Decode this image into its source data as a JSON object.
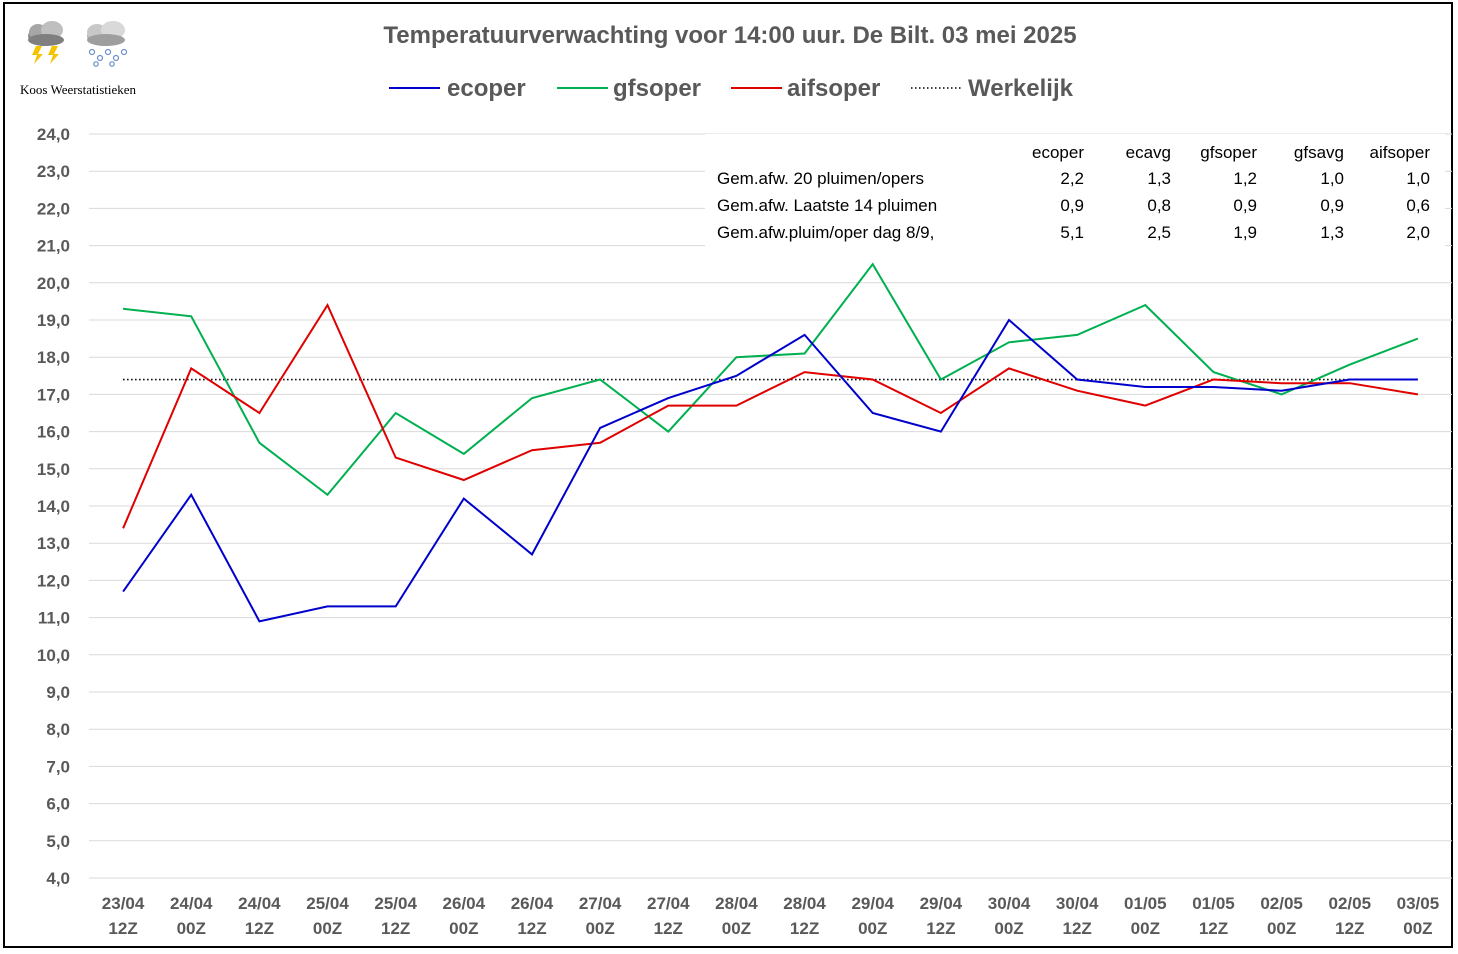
{
  "brand": {
    "name": "Koos Weerstatistieken",
    "icons": [
      "thunderstorm-cloud-icon",
      "snow-cloud-icon"
    ]
  },
  "chart_data": {
    "type": "line",
    "title": "Temperatuurverwachting voor 14:00 uur. De Bilt. 03 mei 2025",
    "legend_position": "top",
    "grid": true,
    "ylim": [
      4.0,
      24.0
    ],
    "yticks": [
      "4,0",
      "5,0",
      "6,0",
      "7,0",
      "8,0",
      "9,0",
      "10,0",
      "11,0",
      "12,0",
      "13,0",
      "14,0",
      "15,0",
      "16,0",
      "17,0",
      "18,0",
      "19,0",
      "20,0",
      "21,0",
      "22,0",
      "23,0",
      "24,0"
    ],
    "categories": [
      [
        "23/04",
        "12Z"
      ],
      [
        "24/04",
        "00Z"
      ],
      [
        "24/04",
        "12Z"
      ],
      [
        "25/04",
        "00Z"
      ],
      [
        "25/04",
        "12Z"
      ],
      [
        "26/04",
        "00Z"
      ],
      [
        "26/04",
        "12Z"
      ],
      [
        "27/04",
        "00Z"
      ],
      [
        "27/04",
        "12Z"
      ],
      [
        "28/04",
        "00Z"
      ],
      [
        "28/04",
        "12Z"
      ],
      [
        "29/04",
        "00Z"
      ],
      [
        "29/04",
        "12Z"
      ],
      [
        "30/04",
        "00Z"
      ],
      [
        "30/04",
        "12Z"
      ],
      [
        "01/05",
        "00Z"
      ],
      [
        "01/05",
        "12Z"
      ],
      [
        "02/05",
        "00Z"
      ],
      [
        "02/05",
        "12Z"
      ],
      [
        "03/05",
        "00Z"
      ]
    ],
    "series": [
      {
        "name": "ecoper",
        "color": "#0000cc",
        "style": "solid",
        "values": [
          11.7,
          14.3,
          10.9,
          11.3,
          11.3,
          14.2,
          12.7,
          16.1,
          16.9,
          17.5,
          18.6,
          16.5,
          16.0,
          19.0,
          17.4,
          17.2,
          17.2,
          17.1,
          17.4,
          17.4
        ]
      },
      {
        "name": "gfsoper",
        "color": "#00b050",
        "style": "solid",
        "values": [
          19.3,
          19.1,
          15.7,
          14.3,
          16.5,
          15.4,
          16.9,
          17.4,
          16.0,
          18.0,
          18.1,
          20.5,
          17.4,
          18.4,
          18.6,
          19.4,
          17.6,
          17.0,
          17.8,
          18.5
        ]
      },
      {
        "name": "aifsoper",
        "color": "#e00000",
        "style": "solid",
        "values": [
          13.4,
          17.7,
          16.5,
          19.4,
          15.3,
          14.7,
          15.5,
          15.7,
          16.7,
          16.7,
          17.6,
          17.4,
          16.5,
          17.7,
          17.1,
          16.7,
          17.4,
          17.3,
          17.3,
          17.0
        ]
      },
      {
        "name": "Werkelijk",
        "color": "#000000",
        "style": "dotted",
        "values": [
          17.4,
          17.4,
          17.4,
          17.4,
          17.4,
          17.4,
          17.4,
          17.4,
          17.4,
          17.4,
          17.4,
          17.4,
          17.4,
          17.4,
          17.4,
          17.4,
          17.4,
          17.4,
          17.4,
          17.4
        ]
      }
    ],
    "stats_table": {
      "headers": [
        "ecoper",
        "ecavg",
        "gfsoper",
        "gfsavg",
        "aifsoper"
      ],
      "rows": [
        {
          "label": "Gem.afw. 20 pluimen/opers",
          "values": [
            "2,2",
            "1,3",
            "1,2",
            "1,0",
            "1,0"
          ]
        },
        {
          "label": "Gem.afw. Laatste 14 pluimen",
          "values": [
            "0,9",
            "0,8",
            "0,9",
            "0,9",
            "0,6"
          ]
        },
        {
          "label": "Gem.afw.pluim/oper dag 8/9,",
          "values": [
            "5,1",
            "2,5",
            "1,9",
            "1,3",
            "2,0"
          ]
        }
      ]
    }
  }
}
